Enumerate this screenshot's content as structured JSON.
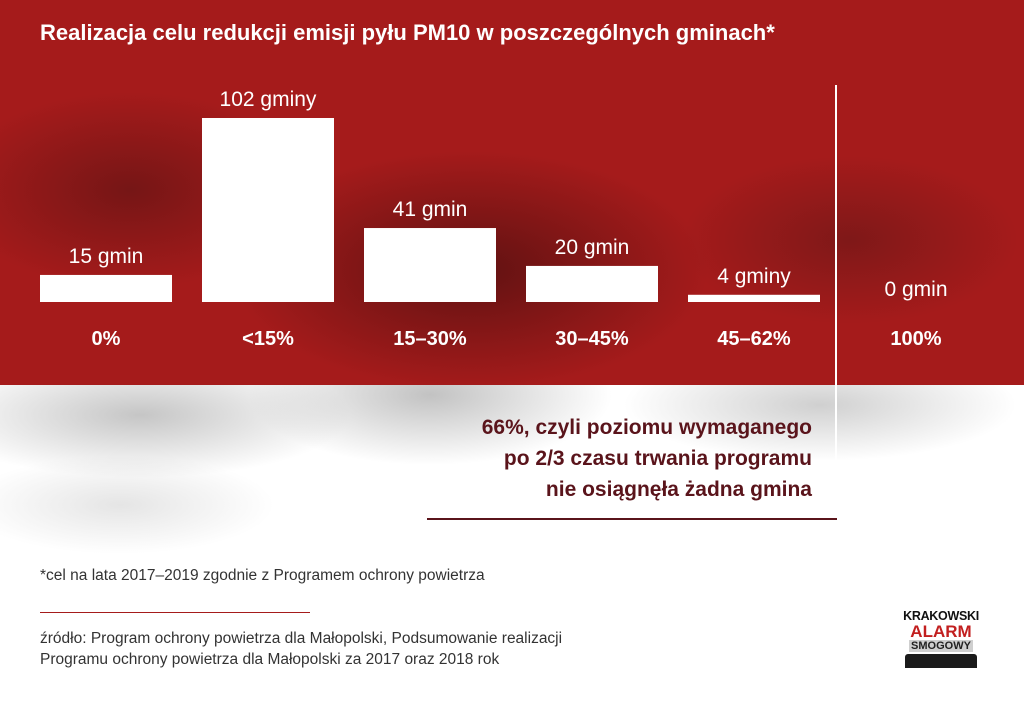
{
  "title": "Realizacja celu redukcji emisji pyłu PM10 w poszczególnych gminach*",
  "chart_data": {
    "type": "bar",
    "categories": [
      "0%",
      "<15%",
      "15–30%",
      "30–45%",
      "45–62%",
      "100%"
    ],
    "values": [
      15,
      102,
      41,
      20,
      4,
      0
    ],
    "data_labels": [
      "15 gmin",
      "102 gminy",
      "41 gmin",
      "20 gmin",
      "4 gminy",
      "0 gmin"
    ],
    "ylim": [
      0,
      102
    ],
    "grid": false,
    "legend": "none"
  },
  "note": {
    "lines": [
      "66%, czyli poziomu wymaganego",
      "po 2/3 czasu trwania programu",
      "nie osiągnęła żadna gmina"
    ]
  },
  "footnote": "*cel na lata 2017–2019 zgodnie z Programem ochrony powietrza",
  "source": {
    "line1": "źródło: Program ochrony powietrza dla Małopolski, Podsumowanie realizacji",
    "line2": "Programu ochrony powietrza dla Małopolski za 2017 oraz 2018 rok"
  },
  "logo": {
    "line1": "KRAKOWSKI",
    "line2": "ALARM",
    "line3": "SMOGOWY"
  },
  "colors": {
    "band": "#a51b1b",
    "bars": "#ffffff",
    "note_text": "#5a141b"
  }
}
